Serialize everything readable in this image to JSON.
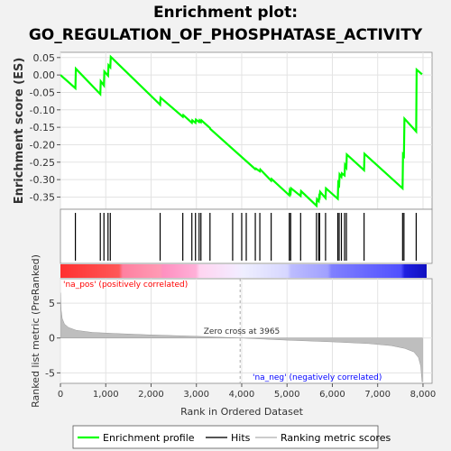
{
  "title_line1": "Enrichment plot:",
  "title_line2": "GO_REGULATION_OF_PHOSPHATASE_ACTIVITY",
  "colors": {
    "background": "#f2f2f2",
    "panel": "#ffffff",
    "profile": "#00ff00",
    "hits": "#000000",
    "metric_fill": "#bebebe",
    "pos_label": "#ff0000",
    "neg_label": "#0000ff",
    "zero_line": "#aaaaaa"
  },
  "chart_data": [
    {
      "type": "line",
      "name": "enrichment-profile",
      "ylabel": "Enrichment score (ES)",
      "ylim": [
        -0.385,
        0.065
      ],
      "xlim": [
        0,
        8200
      ],
      "yticks": [
        0.05,
        0.0,
        -0.05,
        -0.1,
        -0.15,
        -0.2,
        -0.25,
        -0.3,
        -0.35
      ],
      "ytick_labels": [
        "0.05",
        "0.00",
        "-0.05",
        "-0.10",
        "-0.15",
        "-0.20",
        "-0.25",
        "-0.30",
        "-0.35"
      ],
      "grid": true,
      "points": [
        [
          0,
          0.0
        ],
        [
          330,
          -0.038
        ],
        [
          340,
          0.018
        ],
        [
          880,
          -0.055
        ],
        [
          890,
          -0.018
        ],
        [
          960,
          -0.03
        ],
        [
          970,
          0.01
        ],
        [
          1050,
          -0.002
        ],
        [
          1060,
          0.028
        ],
        [
          1100,
          0.022
        ],
        [
          1110,
          0.052
        ],
        [
          2200,
          -0.085
        ],
        [
          2210,
          -0.065
        ],
        [
          2700,
          -0.12
        ],
        [
          2710,
          -0.115
        ],
        [
          2900,
          -0.137
        ],
        [
          2910,
          -0.13
        ],
        [
          2980,
          -0.137
        ],
        [
          2990,
          -0.128
        ],
        [
          3060,
          -0.135
        ],
        [
          3070,
          -0.13
        ],
        [
          3100,
          -0.135
        ],
        [
          3110,
          -0.13
        ],
        [
          3300,
          -0.152
        ],
        [
          3310,
          -0.155
        ],
        [
          4300,
          -0.27
        ],
        [
          4310,
          -0.268
        ],
        [
          4400,
          -0.276
        ],
        [
          4410,
          -0.271
        ],
        [
          4650,
          -0.303
        ],
        [
          4660,
          -0.298
        ],
        [
          5050,
          -0.345
        ],
        [
          5060,
          -0.332
        ],
        [
          5080,
          -0.338
        ],
        [
          5090,
          -0.325
        ],
        [
          5300,
          -0.347
        ],
        [
          5310,
          -0.333
        ],
        [
          5650,
          -0.375
        ],
        [
          5660,
          -0.356
        ],
        [
          5700,
          -0.362
        ],
        [
          5710,
          -0.348
        ],
        [
          5720,
          -0.35
        ],
        [
          5730,
          -0.335
        ],
        [
          5850,
          -0.353
        ],
        [
          5860,
          -0.325
        ],
        [
          6120,
          -0.355
        ],
        [
          6130,
          -0.31
        ],
        [
          6150,
          -0.315
        ],
        [
          6160,
          -0.285
        ],
        [
          6200,
          -0.292
        ],
        [
          6210,
          -0.282
        ],
        [
          6270,
          -0.288
        ],
        [
          6280,
          -0.258
        ],
        [
          6310,
          -0.265
        ],
        [
          6320,
          -0.228
        ],
        [
          6700,
          -0.273
        ],
        [
          6710,
          -0.226
        ],
        [
          7550,
          -0.325
        ],
        [
          7560,
          -0.228
        ],
        [
          7580,
          -0.232
        ],
        [
          7590,
          -0.125
        ],
        [
          7850,
          -0.162
        ],
        [
          7860,
          0.015
        ],
        [
          7980,
          0.002
        ]
      ]
    },
    {
      "type": "scatter",
      "name": "hits",
      "x": [
        330,
        880,
        960,
        1050,
        1100,
        2200,
        2700,
        2900,
        2980,
        3060,
        3100,
        3300,
        3800,
        4000,
        4100,
        4300,
        4400,
        4650,
        5050,
        5080,
        5300,
        5650,
        5700,
        5720,
        5850,
        6120,
        6150,
        6200,
        6270,
        6310,
        6700,
        7550,
        7580,
        7850
      ]
    },
    {
      "type": "area",
      "name": "ranked-list-metric",
      "xlabel": "Rank in Ordered Dataset",
      "ylabel": "Ranked list metric (PreRanked)",
      "ylim": [
        -6.5,
        8.5
      ],
      "yticks": [
        5,
        0,
        -5
      ],
      "ytick_labels": [
        "5",
        "0",
        "-5"
      ],
      "xticks": [
        0,
        1000,
        2000,
        3000,
        4000,
        5000,
        6000,
        7000,
        8000
      ],
      "xtick_labels": [
        "0",
        "1,000",
        "2,000",
        "3,000",
        "4,000",
        "5,000",
        "6,000",
        "7,000",
        "8,000"
      ],
      "grid": true,
      "points": [
        [
          0,
          6.5
        ],
        [
          15,
          4.0
        ],
        [
          40,
          2.8
        ],
        [
          90,
          2.0
        ],
        [
          180,
          1.5
        ],
        [
          350,
          1.1
        ],
        [
          700,
          0.8
        ],
        [
          1200,
          0.65
        ],
        [
          2000,
          0.45
        ],
        [
          3000,
          0.25
        ],
        [
          3965,
          0.0
        ],
        [
          5000,
          -0.3
        ],
        [
          6000,
          -0.55
        ],
        [
          6800,
          -0.8
        ],
        [
          7300,
          -1.1
        ],
        [
          7600,
          -1.5
        ],
        [
          7800,
          -2.0
        ],
        [
          7900,
          -2.8
        ],
        [
          7950,
          -4.0
        ],
        [
          7980,
          -6.3
        ],
        [
          7990,
          -6.3
        ]
      ],
      "zero_cross_label": "Zero cross at 3965",
      "zero_cross_x": 3965,
      "pos_label": "'na_pos' (positively correlated)",
      "neg_label": "'na_neg' (negatively correlated)"
    }
  ],
  "legend": {
    "placement": "bottom",
    "items": [
      {
        "label": "Enrichment profile"
      },
      {
        "label": "Hits"
      },
      {
        "label": "Ranking metric scores"
      }
    ]
  }
}
